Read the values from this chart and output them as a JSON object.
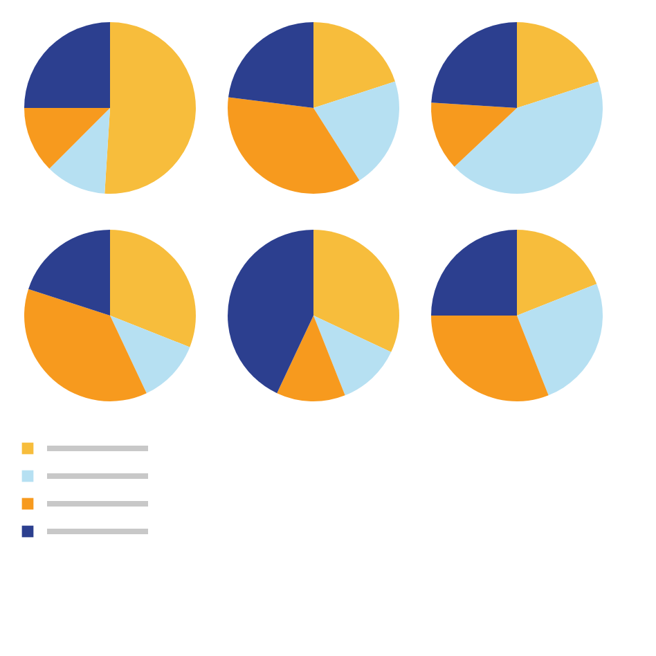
{
  "chart_data": [
    {
      "type": "pie",
      "categories": [
        null,
        null,
        null,
        null
      ],
      "values": [
        51,
        11.5,
        12.5,
        25
      ],
      "colors": [
        "#f7bd3c",
        "#b6e0f2",
        "#f79a1e",
        "#2c3f8f"
      ]
    },
    {
      "type": "pie",
      "categories": [
        null,
        null,
        null,
        null
      ],
      "values": [
        20,
        21,
        36,
        23
      ],
      "colors": [
        "#f7bd3c",
        "#b6e0f2",
        "#f79a1e",
        "#2c3f8f"
      ]
    },
    {
      "type": "pie",
      "categories": [
        null,
        null,
        null,
        null
      ],
      "values": [
        20,
        43,
        13,
        24
      ],
      "colors": [
        "#f7bd3c",
        "#b6e0f2",
        "#f79a1e",
        "#2c3f8f"
      ]
    },
    {
      "type": "pie",
      "categories": [
        null,
        null,
        null,
        null
      ],
      "values": [
        31,
        12,
        37,
        20
      ],
      "colors": [
        "#f7bd3c",
        "#b6e0f2",
        "#f79a1e",
        "#2c3f8f"
      ]
    },
    {
      "type": "pie",
      "categories": [
        null,
        null,
        null,
        null
      ],
      "values": [
        32,
        12,
        13,
        43
      ],
      "colors": [
        "#f7bd3c",
        "#b6e0f2",
        "#f79a1e",
        "#2c3f8f"
      ]
    },
    {
      "type": "pie",
      "categories": [
        null,
        null,
        null,
        null
      ],
      "values": [
        19,
        25,
        31,
        25
      ],
      "colors": [
        "#f7bd3c",
        "#b6e0f2",
        "#f79a1e",
        "#2c3f8f"
      ]
    }
  ]
}
